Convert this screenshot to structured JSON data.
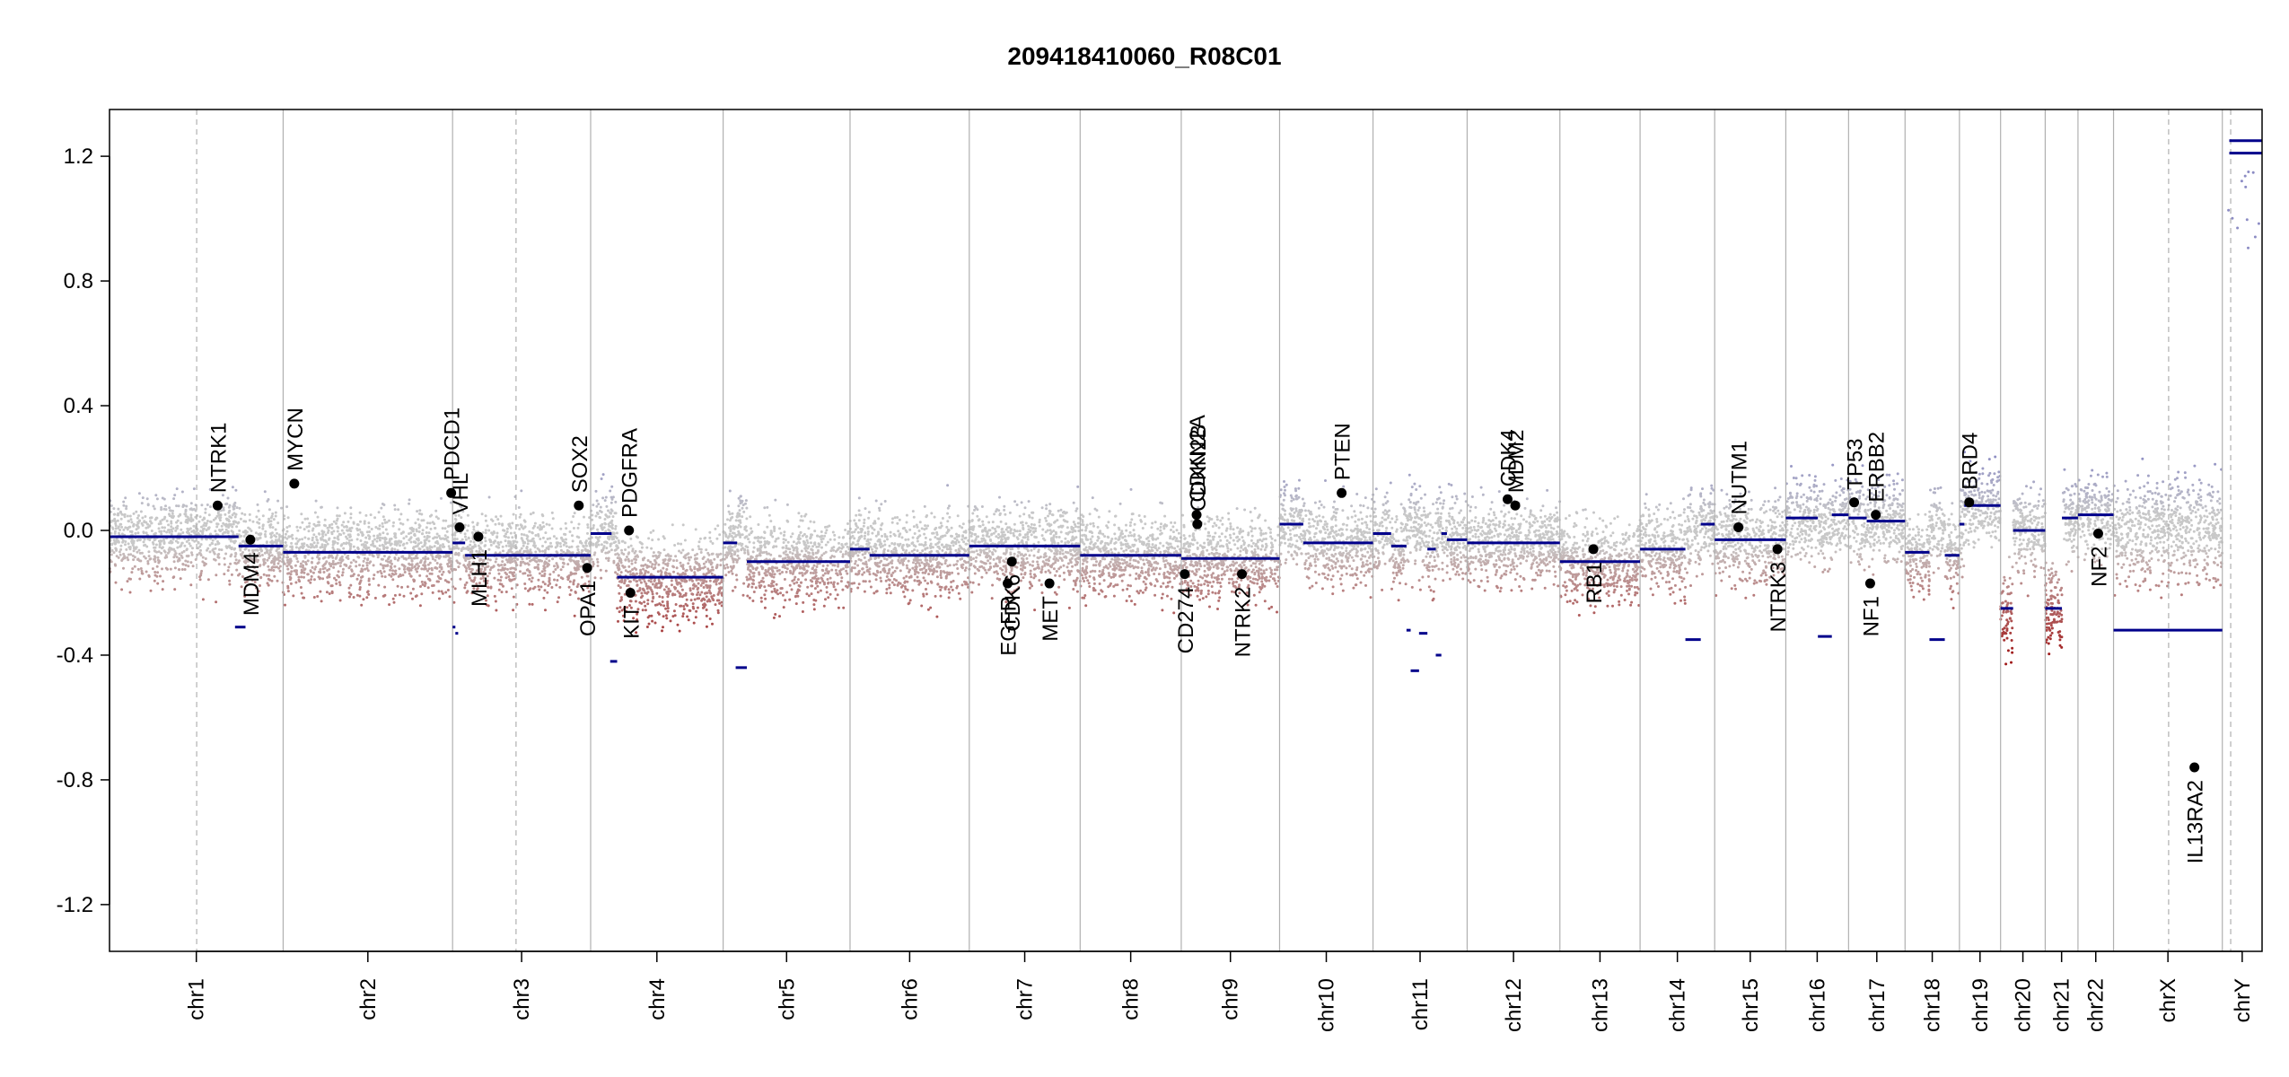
{
  "chart_data": {
    "type": "scatter",
    "title": "209418410060_R08C01",
    "xlabel": "",
    "ylabel": "",
    "ylim": [
      -1.35,
      1.35
    ],
    "y_ticks": [
      -1.2,
      -0.8,
      -0.4,
      0.0,
      0.4,
      0.8,
      1.2
    ],
    "chromosomes": [
      {
        "name": "chr1",
        "start": 0,
        "end": 249
      },
      {
        "name": "chr2",
        "start": 249,
        "end": 492
      },
      {
        "name": "chr3",
        "start": 492,
        "end": 690
      },
      {
        "name": "chr4",
        "start": 690,
        "end": 880
      },
      {
        "name": "chr5",
        "start": 880,
        "end": 1062
      },
      {
        "name": "chr6",
        "start": 1062,
        "end": 1233
      },
      {
        "name": "chr7",
        "start": 1233,
        "end": 1392
      },
      {
        "name": "chr8",
        "start": 1392,
        "end": 1537
      },
      {
        "name": "chr9",
        "start": 1537,
        "end": 1678
      },
      {
        "name": "chr10",
        "start": 1678,
        "end": 1812
      },
      {
        "name": "chr11",
        "start": 1812,
        "end": 1947
      },
      {
        "name": "chr12",
        "start": 1947,
        "end": 2080
      },
      {
        "name": "chr13",
        "start": 2080,
        "end": 2195
      },
      {
        "name": "chr14",
        "start": 2195,
        "end": 2302
      },
      {
        "name": "chr15",
        "start": 2302,
        "end": 2404
      },
      {
        "name": "chr16",
        "start": 2404,
        "end": 2494
      },
      {
        "name": "chr17",
        "start": 2494,
        "end": 2575
      },
      {
        "name": "chr18",
        "start": 2575,
        "end": 2653
      },
      {
        "name": "chr19",
        "start": 2653,
        "end": 2712
      },
      {
        "name": "chr20",
        "start": 2712,
        "end": 2776
      },
      {
        "name": "chr21",
        "start": 2776,
        "end": 2823
      },
      {
        "name": "chr22",
        "start": 2823,
        "end": 2874
      },
      {
        "name": "chrX",
        "start": 2874,
        "end": 3030
      },
      {
        "name": "chrY",
        "start": 3030,
        "end": 3087
      }
    ],
    "centromeres": [
      125,
      586,
      583,
      585,
      580,
      584,
      582,
      580,
      580,
      581,
      583,
      583,
      580,
      580,
      580,
      580,
      580,
      580,
      580,
      580,
      580,
      580,
      2953,
      3042
    ],
    "segments": [
      {
        "chr": "chr1",
        "from": 0,
        "to": 185,
        "value": -0.02
      },
      {
        "chr": "chr1",
        "from": 185,
        "to": 249,
        "value": -0.05
      },
      {
        "chr": "chr1",
        "from": 180,
        "to": 195,
        "value": -0.31
      },
      {
        "chr": "chr2",
        "from": 249,
        "to": 492,
        "value": -0.07
      },
      {
        "chr": "chr3",
        "from": 492,
        "to": 510,
        "value": -0.04
      },
      {
        "chr": "chr3",
        "from": 510,
        "to": 690,
        "value": -0.08
      },
      {
        "chr": "chr3",
        "from": 492,
        "to": 496,
        "value": -0.31
      },
      {
        "chr": "chr3",
        "from": 496,
        "to": 500,
        "value": -0.33
      },
      {
        "chr": "chr4",
        "from": 690,
        "to": 720,
        "value": -0.01
      },
      {
        "chr": "chr4",
        "from": 718,
        "to": 728,
        "value": -0.42
      },
      {
        "chr": "chr4",
        "from": 728,
        "to": 880,
        "value": -0.15
      },
      {
        "chr": "chr5",
        "from": 880,
        "to": 900,
        "value": -0.04
      },
      {
        "chr": "chr5",
        "from": 898,
        "to": 914,
        "value": -0.44
      },
      {
        "chr": "chr5",
        "from": 914,
        "to": 1062,
        "value": -0.1
      },
      {
        "chr": "chr6",
        "from": 1062,
        "to": 1090,
        "value": -0.06
      },
      {
        "chr": "chr6",
        "from": 1090,
        "to": 1233,
        "value": -0.08
      },
      {
        "chr": "chr7",
        "from": 1233,
        "to": 1392,
        "value": -0.05
      },
      {
        "chr": "chr8",
        "from": 1392,
        "to": 1537,
        "value": -0.08
      },
      {
        "chr": "chr9",
        "from": 1537,
        "to": 1678,
        "value": -0.09
      },
      {
        "chr": "chr10",
        "from": 1678,
        "to": 1712,
        "value": 0.02
      },
      {
        "chr": "chr10",
        "from": 1712,
        "to": 1812,
        "value": -0.04
      },
      {
        "chr": "chr11",
        "from": 1812,
        "to": 1838,
        "value": -0.01
      },
      {
        "chr": "chr11",
        "from": 1838,
        "to": 1860,
        "value": -0.05
      },
      {
        "chr": "chr11",
        "from": 1860,
        "to": 1866,
        "value": -0.32
      },
      {
        "chr": "chr11",
        "from": 1866,
        "to": 1878,
        "value": -0.45
      },
      {
        "chr": "chr11",
        "from": 1878,
        "to": 1890,
        "value": -0.33
      },
      {
        "chr": "chr11",
        "from": 1890,
        "to": 1902,
        "value": -0.06
      },
      {
        "chr": "chr11",
        "from": 1902,
        "to": 1910,
        "value": -0.4
      },
      {
        "chr": "chr11",
        "from": 1910,
        "to": 1918,
        "value": -0.01
      },
      {
        "chr": "chr11",
        "from": 1918,
        "to": 1947,
        "value": -0.03
      },
      {
        "chr": "chr12",
        "from": 1947,
        "to": 2080,
        "value": -0.04
      },
      {
        "chr": "chr13",
        "from": 2080,
        "to": 2195,
        "value": -0.1
      },
      {
        "chr": "chr14",
        "from": 2195,
        "to": 2260,
        "value": -0.06
      },
      {
        "chr": "chr14",
        "from": 2260,
        "to": 2282,
        "value": -0.35
      },
      {
        "chr": "chr14",
        "from": 2282,
        "to": 2302,
        "value": 0.02
      },
      {
        "chr": "chr15",
        "from": 2302,
        "to": 2404,
        "value": -0.03
      },
      {
        "chr": "chr16",
        "from": 2404,
        "to": 2450,
        "value": 0.04
      },
      {
        "chr": "chr16",
        "from": 2450,
        "to": 2470,
        "value": -0.34
      },
      {
        "chr": "chr16",
        "from": 2470,
        "to": 2494,
        "value": 0.05
      },
      {
        "chr": "chr17",
        "from": 2494,
        "to": 2520,
        "value": 0.04
      },
      {
        "chr": "chr17",
        "from": 2520,
        "to": 2575,
        "value": 0.03
      },
      {
        "chr": "chr18",
        "from": 2575,
        "to": 2610,
        "value": -0.07
      },
      {
        "chr": "chr18",
        "from": 2610,
        "to": 2632,
        "value": -0.35
      },
      {
        "chr": "chr18",
        "from": 2632,
        "to": 2653,
        "value": -0.08
      },
      {
        "chr": "chr19",
        "from": 2653,
        "to": 2660,
        "value": 0.02
      },
      {
        "chr": "chr19",
        "from": 2660,
        "to": 2712,
        "value": 0.08
      },
      {
        "chr": "chr20",
        "from": 2712,
        "to": 2730,
        "value": -0.25
      },
      {
        "chr": "chr20",
        "from": 2730,
        "to": 2776,
        "value": 0.0
      },
      {
        "chr": "chr21",
        "from": 2776,
        "to": 2800,
        "value": -0.25
      },
      {
        "chr": "chr21",
        "from": 2800,
        "to": 2823,
        "value": 0.04
      },
      {
        "chr": "chr22",
        "from": 2823,
        "to": 2874,
        "value": 0.05
      },
      {
        "chr": "chrX",
        "from": 2874,
        "to": 3030,
        "value": -0.32
      },
      {
        "chr": "chrY",
        "from": 3040,
        "to": 3087,
        "value": 1.21
      },
      {
        "chr": "chrY",
        "from": 3040,
        "to": 3087,
        "value": 1.25
      }
    ],
    "genes": [
      {
        "name": "NTRK1",
        "pos": 155,
        "value": 0.08,
        "label": "above"
      },
      {
        "name": "MDM4",
        "pos": 202,
        "value": -0.03,
        "label": "below"
      },
      {
        "name": "MYCN",
        "pos": 265,
        "value": 0.15,
        "label": "above"
      },
      {
        "name": "PDCD1",
        "pos": 490,
        "value": 0.12,
        "label": "above"
      },
      {
        "name": "VHL",
        "pos": 502,
        "value": 0.01,
        "label": "above"
      },
      {
        "name": "MLH1",
        "pos": 529,
        "value": -0.02,
        "label": "below"
      },
      {
        "name": "SOX2",
        "pos": 673,
        "value": 0.08,
        "label": "above"
      },
      {
        "name": "OPA1",
        "pos": 685,
        "value": -0.12,
        "label": "below"
      },
      {
        "name": "PDGFRA",
        "pos": 745,
        "value": 0.0,
        "label": "above"
      },
      {
        "name": "KIT",
        "pos": 747,
        "value": -0.2,
        "label": "below"
      },
      {
        "name": "EGFR",
        "pos": 1288,
        "value": -0.17,
        "label": "below"
      },
      {
        "name": "CDK6",
        "pos": 1294,
        "value": -0.1,
        "label": "below"
      },
      {
        "name": "MET",
        "pos": 1348,
        "value": -0.17,
        "label": "below"
      },
      {
        "name": "CD274",
        "pos": 1542,
        "value": -0.14,
        "label": "below"
      },
      {
        "name": "CDKN2A",
        "pos": 1559,
        "value": 0.05,
        "label": "above"
      },
      {
        "name": "CDKN2B",
        "pos": 1560,
        "value": 0.02,
        "label": "above"
      },
      {
        "name": "NTRK2",
        "pos": 1624,
        "value": -0.14,
        "label": "below"
      },
      {
        "name": "PTEN",
        "pos": 1767,
        "value": 0.12,
        "label": "above"
      },
      {
        "name": "CDK4",
        "pos": 2005,
        "value": 0.1,
        "label": "above"
      },
      {
        "name": "MDM2",
        "pos": 2016,
        "value": 0.08,
        "label": "above"
      },
      {
        "name": "RB1",
        "pos": 2128,
        "value": -0.06,
        "label": "below"
      },
      {
        "name": "NUTM1",
        "pos": 2336,
        "value": 0.01,
        "label": "above"
      },
      {
        "name": "NTRK3",
        "pos": 2392,
        "value": -0.06,
        "label": "below"
      },
      {
        "name": "TP53",
        "pos": 2502,
        "value": 0.09,
        "label": "above"
      },
      {
        "name": "NF1",
        "pos": 2525,
        "value": -0.17,
        "label": "below"
      },
      {
        "name": "ERBB2",
        "pos": 2533,
        "value": 0.05,
        "label": "above"
      },
      {
        "name": "BRD4",
        "pos": 2667,
        "value": 0.09,
        "label": "above"
      },
      {
        "name": "NF2",
        "pos": 2852,
        "value": -0.01,
        "label": "below"
      },
      {
        "name": "IL13RA2",
        "pos": 2990,
        "value": -0.76,
        "label": "below"
      }
    ]
  },
  "colors": {
    "segment": "#00008b",
    "gain_point": "#8c8cc4",
    "neutral_point": "#c8c8c8",
    "loss_point": "#a01a1a",
    "gene_point": "#000000",
    "chromosome_boundary": "#b0b0b0",
    "centromere": "#b0b0b0"
  }
}
